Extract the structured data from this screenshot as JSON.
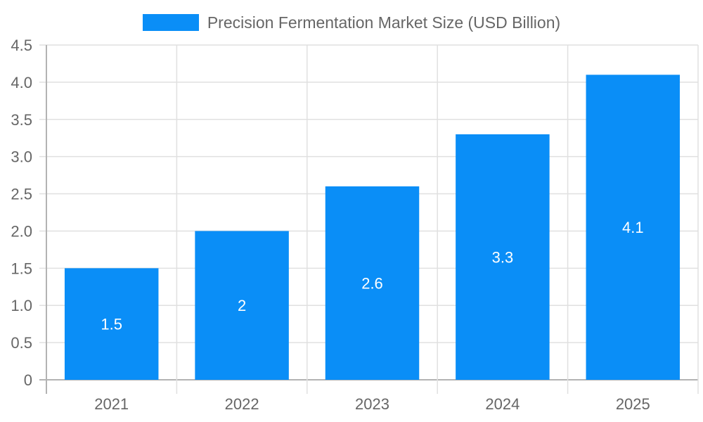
{
  "legend": {
    "label": "Precision Fermentation Market Size (USD Billion)",
    "color": "#0a8ef7"
  },
  "chart_data": {
    "type": "bar",
    "title": "",
    "categories": [
      "2021",
      "2022",
      "2023",
      "2024",
      "2025"
    ],
    "series": [
      {
        "name": "Precision Fermentation Market Size (USD Billion)",
        "values": [
          1.5,
          2,
          2.6,
          3.3,
          4.1
        ],
        "color": "#0a8ef7"
      }
    ],
    "data_labels": [
      "1.5",
      "2",
      "2.6",
      "3.3",
      "4.1"
    ],
    "xlabel": "",
    "ylabel": "",
    "ylim": [
      0,
      4.5
    ],
    "yticks": [
      "0",
      "0.5",
      "1.0",
      "1.5",
      "2.0",
      "2.5",
      "3.0",
      "3.5",
      "4.0",
      "4.5"
    ],
    "grid": true,
    "legend_position": "top"
  }
}
